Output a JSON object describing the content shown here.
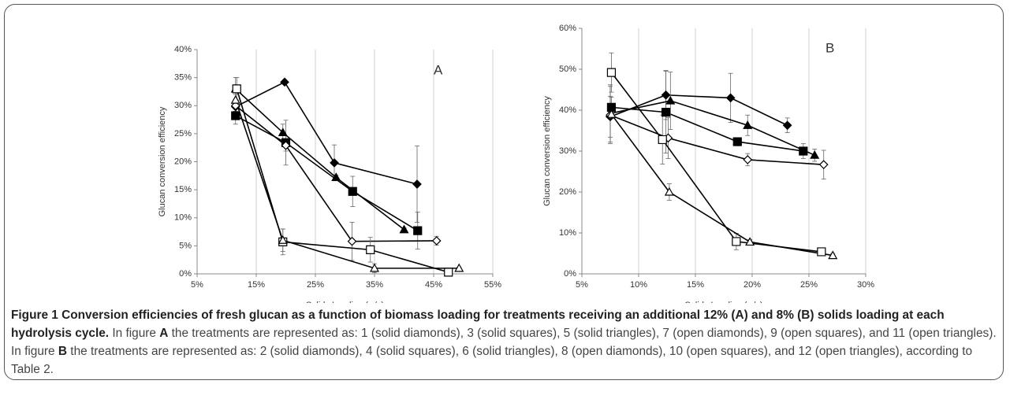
{
  "chart_data": [
    {
      "type": "line",
      "panel": "A",
      "xlabel": "Solids Loading (w/v)",
      "ylabel": "Glucan conversion efficiency",
      "xlim": [
        5,
        55
      ],
      "xticks": [
        {
          "value": 5,
          "label": "5%"
        },
        {
          "value": 15,
          "label": "15%"
        },
        {
          "value": 25,
          "label": "25%"
        },
        {
          "value": 35,
          "label": "35%"
        },
        {
          "value": 45,
          "label": "45%"
        },
        {
          "value": 55,
          "label": "55%"
        }
      ],
      "ylim": [
        0,
        40
      ],
      "yticks": [
        {
          "value": 0,
          "label": "0%"
        },
        {
          "value": 5,
          "label": "5%"
        },
        {
          "value": 10,
          "label": "10%"
        },
        {
          "value": 15,
          "label": "15%"
        },
        {
          "value": 20,
          "label": "20%"
        },
        {
          "value": 25,
          "label": "25%"
        },
        {
          "value": 30,
          "label": "30%"
        },
        {
          "value": 35,
          "label": "35%"
        },
        {
          "value": 40,
          "label": "40%"
        }
      ],
      "grid": "x",
      "series": [
        {
          "marker": "diamond",
          "filled": true,
          "color": "#000000",
          "x": [
            11.5,
            19.8,
            28.2,
            42.2
          ],
          "values": [
            29.8,
            34.2,
            19.8,
            16.0
          ],
          "errors": [
            1.0,
            0.3,
            3.2,
            6.8
          ]
        },
        {
          "marker": "square",
          "filled": true,
          "color": "#000000",
          "x": [
            11.5,
            20.0,
            31.3,
            42.3
          ],
          "values": [
            28.2,
            23.4,
            14.7,
            7.7
          ],
          "errors": [
            1.5,
            4.0,
            2.7,
            3.3
          ]
        },
        {
          "marker": "triangle",
          "filled": true,
          "color": "#000000",
          "x": [
            11.5,
            19.5,
            28.5,
            40.0
          ],
          "values": [
            33.0,
            25.2,
            17.2,
            7.9
          ],
          "errors": [
            2.0,
            1.5,
            0.4,
            0.3
          ]
        },
        {
          "marker": "diamond",
          "filled": false,
          "color": "#000000",
          "x": [
            11.5,
            20.0,
            31.2,
            45.5
          ],
          "values": [
            30.0,
            22.9,
            5.8,
            5.9
          ],
          "errors": [
            1.0,
            1.0,
            3.4,
            0.8
          ]
        },
        {
          "marker": "square",
          "filled": false,
          "color": "#000000",
          "x": [
            11.7,
            19.5,
            34.3,
            47.5
          ],
          "values": [
            33.0,
            5.7,
            4.3,
            0.3
          ],
          "errors": [
            2.0,
            2.3,
            2.2,
            0.2
          ]
        },
        {
          "marker": "triangle",
          "filled": false,
          "color": "#000000",
          "x": [
            11.5,
            19.5,
            35.0,
            49.3
          ],
          "values": [
            31.0,
            6.0,
            1.0,
            1.0
          ],
          "errors": [
            1.0,
            2.0,
            0.8,
            0.2
          ]
        }
      ]
    },
    {
      "type": "line",
      "panel": "B",
      "xlabel": "Solids Loading (w/v)",
      "ylabel": "Glucan conversion efficiency",
      "xlim": [
        5,
        30
      ],
      "xticks": [
        {
          "value": 5,
          "label": "5%"
        },
        {
          "value": 10,
          "label": "10%"
        },
        {
          "value": 15,
          "label": "15%"
        },
        {
          "value": 20,
          "label": "20%"
        },
        {
          "value": 25,
          "label": "25%"
        },
        {
          "value": 30,
          "label": "30%"
        }
      ],
      "ylim": [
        0,
        60
      ],
      "yticks": [
        {
          "value": 0,
          "label": "0%"
        },
        {
          "value": 10,
          "label": "10%"
        },
        {
          "value": 20,
          "label": "20%"
        },
        {
          "value": 30,
          "label": "30%"
        },
        {
          "value": 40,
          "label": "40%"
        },
        {
          "value": 50,
          "label": "50%"
        },
        {
          "value": 60,
          "label": "60%"
        }
      ],
      "grid": "x",
      "series": [
        {
          "marker": "diamond",
          "filled": true,
          "color": "#000000",
          "x": [
            7.5,
            12.4,
            18.1,
            23.1
          ],
          "values": [
            38.4,
            43.7,
            43.0,
            36.3
          ],
          "errors": [
            5.0,
            6.0,
            6.0,
            1.8
          ]
        },
        {
          "marker": "square",
          "filled": true,
          "color": "#000000",
          "x": [
            7.6,
            12.4,
            18.7,
            24.5
          ],
          "values": [
            40.7,
            39.5,
            32.3,
            30.0
          ],
          "errors": [
            2.5,
            10.0,
            1.0,
            1.8
          ]
        },
        {
          "marker": "triangle",
          "filled": true,
          "color": "#000000",
          "x": [
            7.5,
            12.8,
            19.6,
            25.5
          ],
          "values": [
            39.2,
            42.3,
            36.3,
            29.0
          ],
          "errors": [
            7.0,
            7.0,
            2.5,
            1.5
          ]
        },
        {
          "marker": "diamond",
          "filled": false,
          "color": "#000000",
          "x": [
            7.5,
            12.6,
            19.6,
            26.3
          ],
          "values": [
            38.8,
            33.2,
            27.9,
            26.7
          ],
          "errors": [
            7.0,
            5.0,
            1.5,
            3.5
          ]
        },
        {
          "marker": "square",
          "filled": false,
          "color": "#000000",
          "x": [
            7.6,
            12.1,
            18.6,
            26.1
          ],
          "values": [
            49.2,
            32.8,
            7.9,
            5.4
          ],
          "errors": [
            4.8,
            6.0,
            2.0,
            0.5
          ]
        },
        {
          "marker": "triangle",
          "filled": false,
          "color": "#000000",
          "x": [
            7.6,
            12.7,
            19.8,
            27.1
          ],
          "values": [
            39.0,
            20.0,
            7.8,
            4.5
          ],
          "errors": [
            1.0,
            2.0,
            0.6,
            0.5
          ]
        }
      ]
    }
  ],
  "caption": {
    "title": "Figure 1 Conversion efficiencies of fresh glucan as a function of biomass loading for treatments receiving an additional 12% (A) and 8% (B) solids loading at each hydrolysis cycle.",
    "parts": [
      " In figure ",
      "A",
      " the treatments are represented as: 1 (solid diamonds), 3 (solid squares), 5 (solid triangles), 7 (open diamonds), 9 (open squares), and 11 (open triangles). In figure ",
      "B",
      " the treatments are represented as: 2 (solid diamonds), 4 (solid squares), 6 (solid triangles), 8 (open diamonds), 10 (open squares), and 12 (open triangles), according to Table 2."
    ]
  }
}
